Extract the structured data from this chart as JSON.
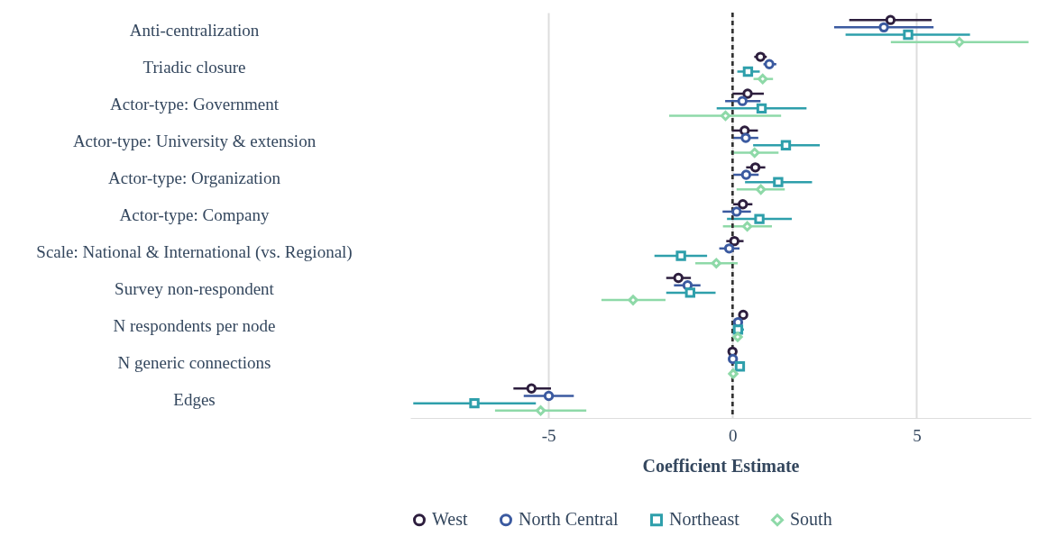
{
  "chart_data": {
    "type": "scatter",
    "orientation": "horizontal",
    "xlabel": "Coefficient Estimate",
    "categories": [
      "Anti-centralization",
      "Triadic closure",
      "Actor-type: Government",
      "Actor-type: University & extension",
      "Actor-type: Organization",
      "Actor-type: Company",
      "Scale: National & International (vs. Regional)",
      "Survey non-respondent",
      "N respondents per node",
      "N generic connections",
      "Edges"
    ],
    "xlim": [
      -8.75,
      8.1
    ],
    "xticks": [
      -5,
      0,
      5
    ],
    "grid": "x",
    "legend": "bottom",
    "ref_lines": [
      {
        "axis": "x",
        "value": 0,
        "line_style": "dashed",
        "color": "#333333"
      }
    ],
    "series": [
      {
        "name": "West",
        "color": "#2d1e3e",
        "marker": "circle",
        "values": [
          4.29,
          0.76,
          0.41,
          0.33,
          0.62,
          0.28,
          0.05,
          -1.47,
          0.29,
          0.0,
          -5.46
        ],
        "errors": [
          [
            3.17,
            5.41
          ],
          [
            0.59,
            0.93
          ],
          [
            0.0,
            0.85
          ],
          [
            -0.02,
            0.69
          ],
          [
            0.37,
            0.89
          ],
          [
            0.02,
            0.54
          ],
          [
            -0.17,
            0.3
          ],
          [
            -1.8,
            -1.13
          ],
          [
            0.2,
            0.38
          ],
          [
            -0.03,
            0.03
          ],
          [
            -5.95,
            -4.93
          ]
        ]
      },
      {
        "name": "North Central",
        "color": "#3b5aa0",
        "marker": "circle",
        "values": [
          4.11,
          1.0,
          0.27,
          0.36,
          0.37,
          0.11,
          -0.09,
          -1.22,
          0.15,
          0.01,
          -4.99
        ],
        "errors": [
          [
            2.76,
            5.46
          ],
          [
            0.84,
            1.19
          ],
          [
            -0.2,
            0.76
          ],
          [
            0.02,
            0.7
          ],
          [
            0.02,
            0.71
          ],
          [
            -0.27,
            0.5
          ],
          [
            -0.36,
            0.19
          ],
          [
            -1.59,
            -0.87
          ],
          [
            0.06,
            0.25
          ],
          [
            -0.03,
            0.05
          ],
          [
            -5.67,
            -4.31
          ]
        ]
      },
      {
        "name": "Northeast",
        "color": "#2e9fab",
        "marker": "square",
        "values": [
          4.77,
          0.42,
          0.79,
          1.45,
          1.24,
          0.73,
          -1.4,
          -1.15,
          0.15,
          0.2,
          -7.01
        ],
        "errors": [
          [
            3.07,
            6.45
          ],
          [
            0.13,
            0.74
          ],
          [
            -0.43,
            2.01
          ],
          [
            0.56,
            2.37
          ],
          [
            0.34,
            2.16
          ],
          [
            -0.15,
            1.61
          ],
          [
            -2.12,
            -0.69
          ],
          [
            -1.8,
            -0.46
          ],
          [
            0.0,
            0.31
          ],
          [
            0.16,
            0.25
          ],
          [
            -8.67,
            -5.34
          ]
        ]
      },
      {
        "name": "South",
        "color": "#8ed9a8",
        "marker": "diamond",
        "values": [
          6.16,
          0.82,
          -0.19,
          0.6,
          0.77,
          0.4,
          -0.44,
          -2.7,
          0.14,
          0.02,
          -5.21
        ],
        "errors": [
          [
            4.3,
            8.04
          ],
          [
            0.57,
            1.1
          ],
          [
            -1.72,
            1.32
          ],
          [
            -0.05,
            1.25
          ],
          [
            0.11,
            1.42
          ],
          [
            -0.26,
            1.07
          ],
          [
            -1.01,
            0.14
          ],
          [
            -3.56,
            -1.82
          ],
          [
            0.06,
            0.22
          ],
          [
            -0.02,
            0.06
          ],
          [
            -6.45,
            -3.97
          ]
        ]
      }
    ]
  }
}
